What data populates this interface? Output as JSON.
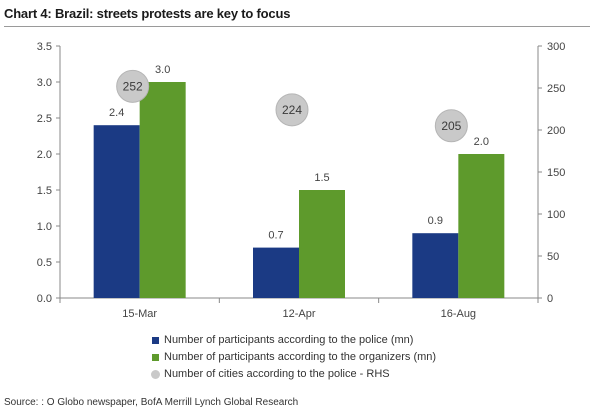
{
  "title_prefix": "Chart 4:",
  "title_text": " Brazil: streets protests are key to focus",
  "source": "Source: : O Globo newspaper, BofA Merrill Lynch Global Research",
  "colors": {
    "police": "#1b3a84",
    "organizers": "#5e9a2c",
    "cities": "#c9c9c9"
  },
  "chart_data": {
    "type": "bar",
    "categories": [
      "15-Mar",
      "12-Apr",
      "16-Aug"
    ],
    "series": [
      {
        "name": "Number of participants according to the police (mn)",
        "values": [
          2.4,
          0.7,
          0.9
        ],
        "axis": "left"
      },
      {
        "name": "Number of participants according to the organizers (mn)",
        "values": [
          3.0,
          1.5,
          2.0
        ],
        "axis": "left"
      },
      {
        "name": "Number of cities according to the police - RHS",
        "values": [
          252,
          224,
          205
        ],
        "axis": "right",
        "marker": "circle"
      }
    ],
    "data_labels_left": [
      [
        "2.4",
        "3.0"
      ],
      [
        "0.7",
        "1.5"
      ],
      [
        "0.9",
        "2.0"
      ]
    ],
    "bubble_labels": [
      "252",
      "224",
      "205"
    ],
    "ylim_left": [
      0,
      3.5
    ],
    "ylim_right": [
      0,
      300
    ],
    "yticks_left": [
      "0.0",
      "0.5",
      "1.0",
      "1.5",
      "2.0",
      "2.5",
      "3.0",
      "3.5"
    ],
    "yticks_right": [
      "0",
      "50",
      "100",
      "150",
      "200",
      "250",
      "300"
    ],
    "legend": "bottom",
    "grid": false
  }
}
